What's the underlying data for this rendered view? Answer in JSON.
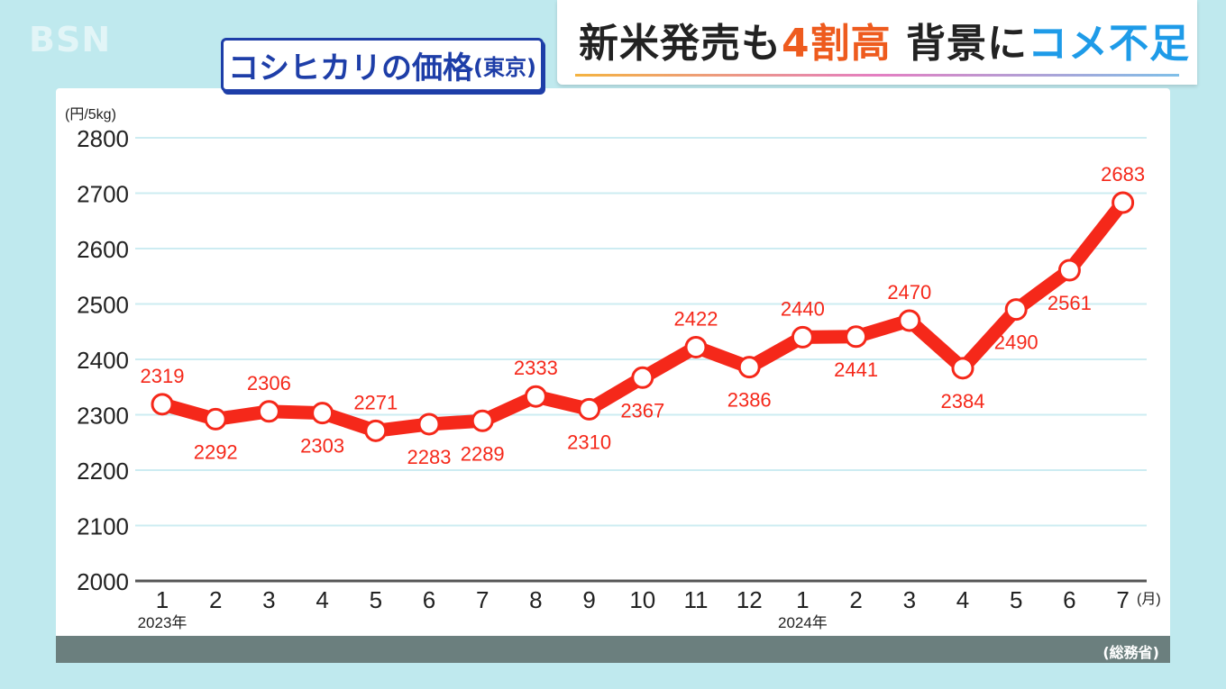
{
  "broadcaster_logo": "BSN",
  "headline": {
    "part1": "新米発売も",
    "part2": "4割高",
    "part3": " 背景に",
    "part4": "コメ不足"
  },
  "colors": {
    "line": "#f5281a",
    "title": "#1e3ea8",
    "accent_orange": "#ee5b1e",
    "accent_blue": "#1e9be8"
  },
  "chart_data": {
    "type": "line",
    "title": "コシヒカリの価格",
    "subtitle": "(東京)",
    "ylabel": "(円/5kg)",
    "xunit": "(月)",
    "source": "(総務省)",
    "ylim": [
      2000,
      2800
    ],
    "yticks": [
      2000,
      2100,
      2200,
      2300,
      2400,
      2500,
      2600,
      2700,
      2800
    ],
    "grid": true,
    "categories": [
      "1",
      "2",
      "3",
      "4",
      "5",
      "6",
      "7",
      "8",
      "9",
      "10",
      "11",
      "12",
      "1",
      "2",
      "3",
      "4",
      "5",
      "6",
      "7"
    ],
    "year_labels": [
      {
        "index": 0,
        "label": "2023年"
      },
      {
        "index": 12,
        "label": "2024年"
      }
    ],
    "series": [
      {
        "values": [
          2319,
          2292,
          2306,
          2303,
          2271,
          2283,
          2289,
          2333,
          2310,
          2367,
          2422,
          2386,
          2440,
          2441,
          2470,
          2384,
          2490,
          2561,
          2683
        ],
        "label_positions": [
          "above",
          "below",
          "above",
          "below",
          "above",
          "below",
          "below",
          "above",
          "below",
          "below",
          "above",
          "below",
          "above",
          "below",
          "above",
          "below",
          "below",
          "below",
          "above"
        ]
      }
    ]
  }
}
